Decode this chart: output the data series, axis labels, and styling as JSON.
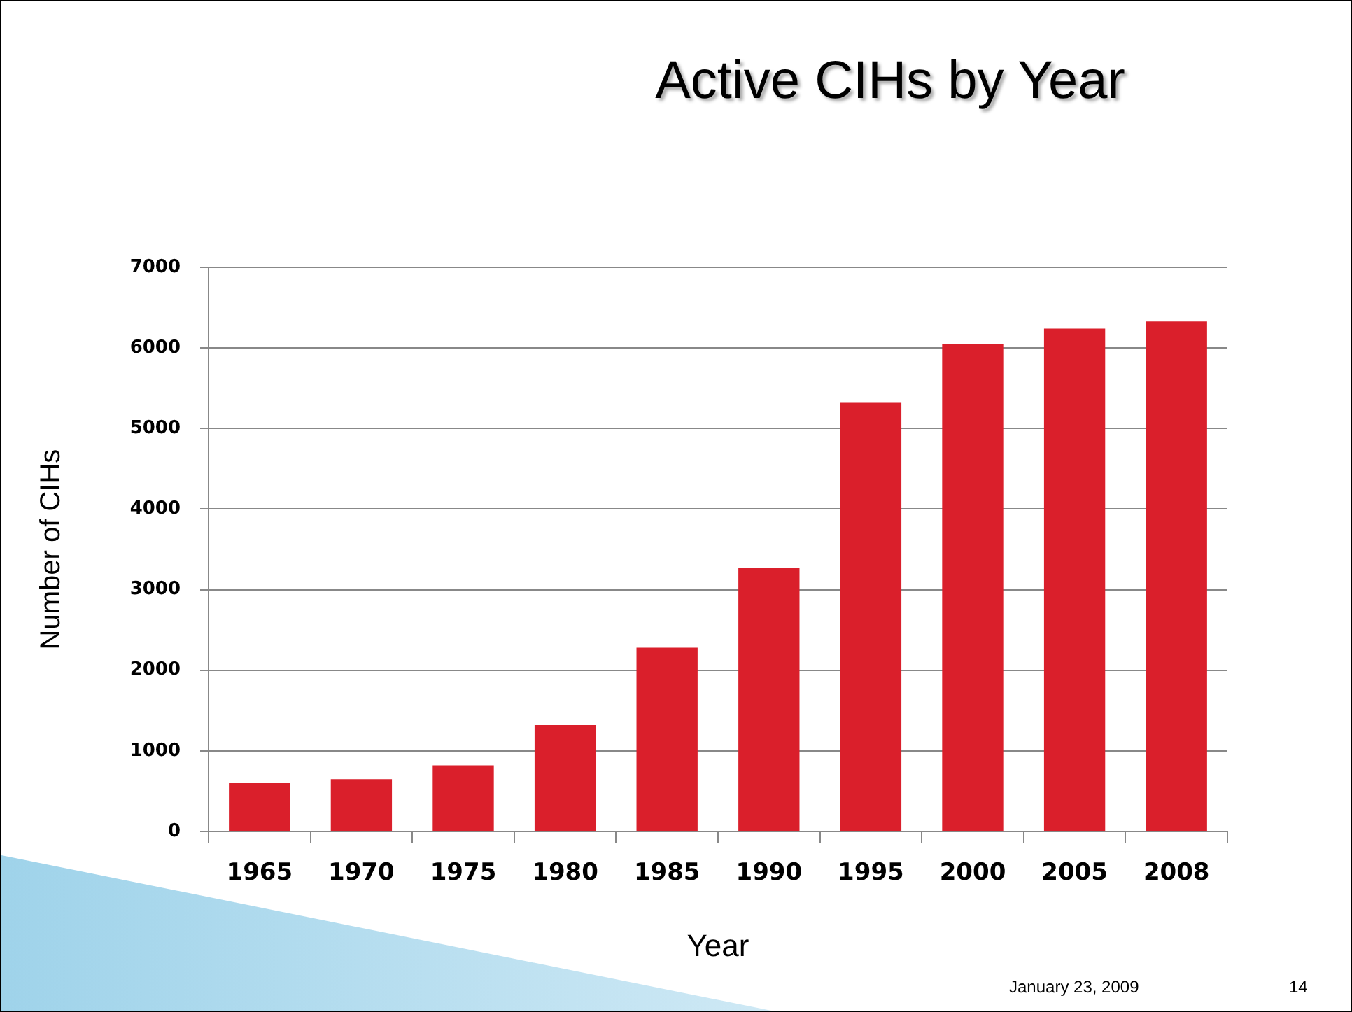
{
  "chart_data": {
    "type": "bar",
    "title": "Active CIHs by Year",
    "xlabel": "Year",
    "ylabel": "Number of CIHs",
    "categories": [
      "1965",
      "1970",
      "1975",
      "1980",
      "1985",
      "1990",
      "1995",
      "2000",
      "2005",
      "2008"
    ],
    "values": [
      600,
      650,
      820,
      1320,
      2280,
      3270,
      5320,
      6050,
      6240,
      6330
    ],
    "color": "#da1f2b",
    "ylim": [
      0,
      7000
    ],
    "yticks": [
      0,
      1000,
      2000,
      3000,
      4000,
      5000,
      6000,
      7000
    ],
    "grid": "y",
    "legend": false,
    "annotations": [
      "January 23, 2009",
      "14"
    ]
  }
}
